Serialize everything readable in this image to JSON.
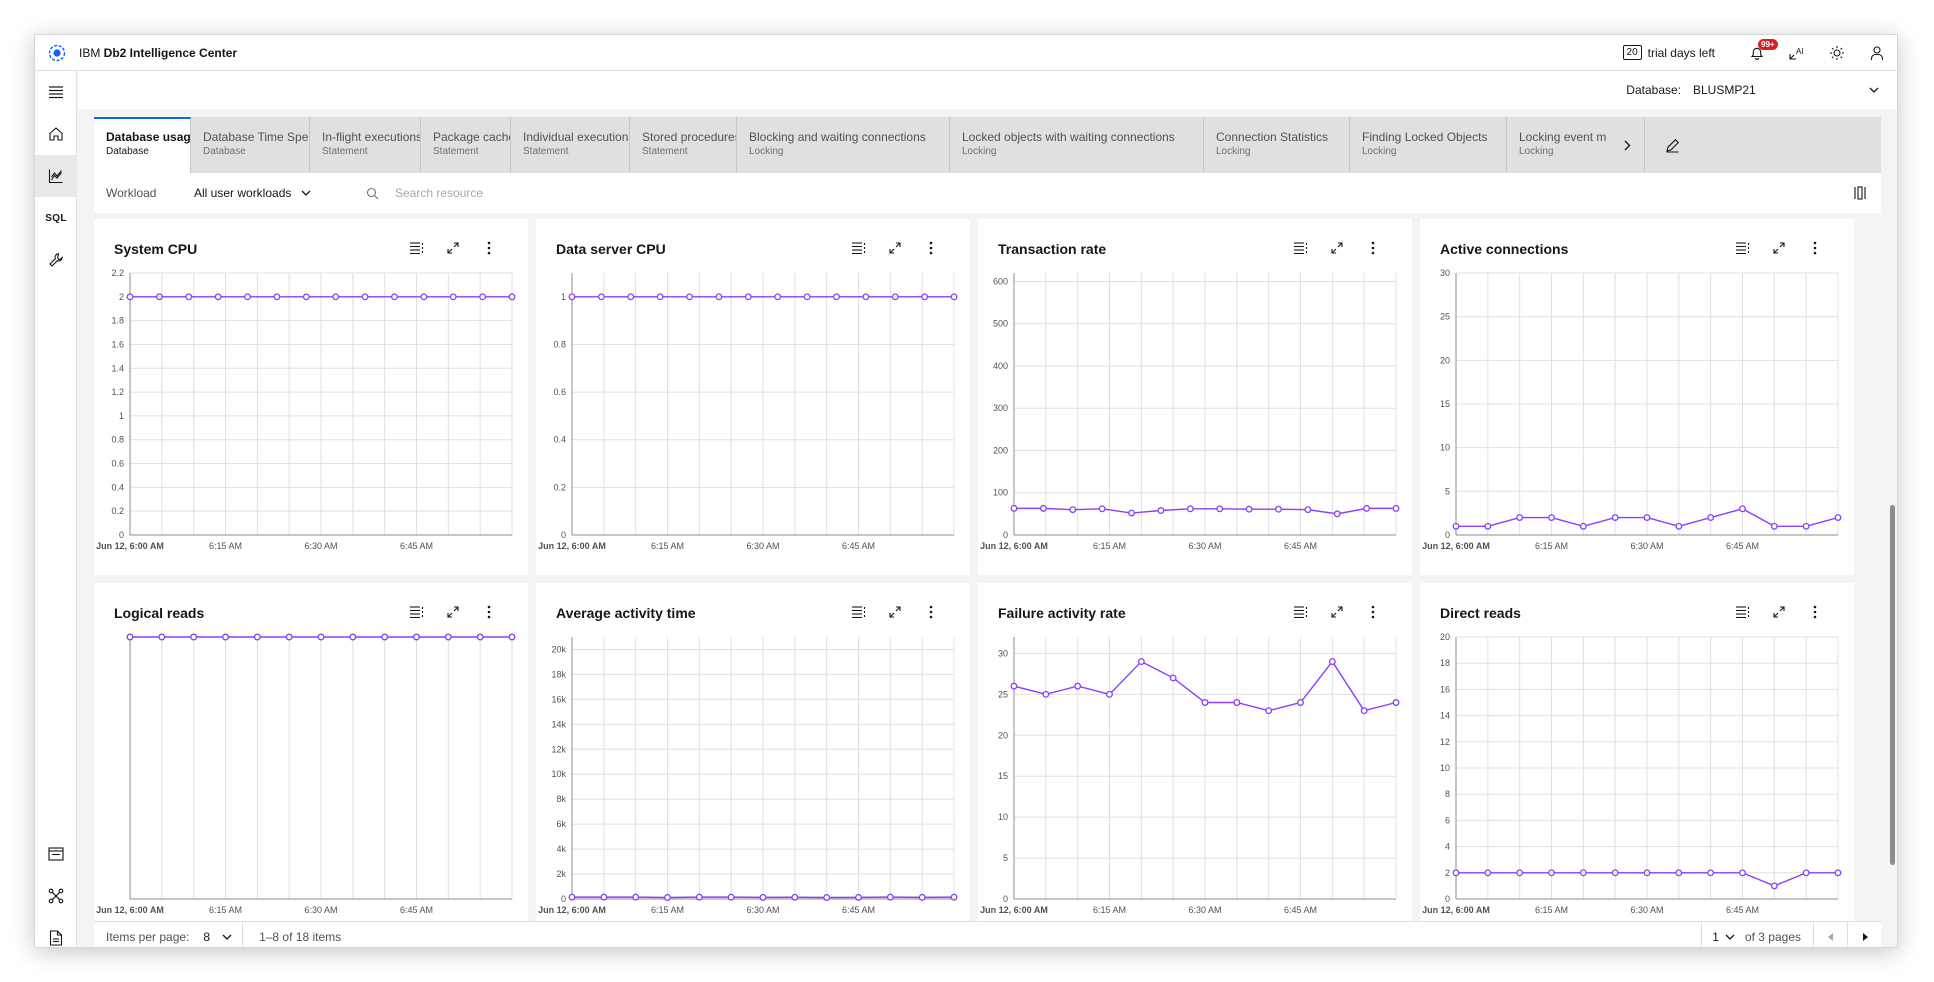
{
  "app": {
    "brand_prefix": "IBM ",
    "brand_name": "Db2 Intelligence Center",
    "trial_days": "20",
    "trial_text": "trial days left",
    "notification_count": "99+",
    "ai_label": "AI"
  },
  "sidenav": {
    "sql_label": "SQL"
  },
  "database": {
    "label": "Database:",
    "value": "BLUSMP21"
  },
  "tabs": [
    {
      "title": "Database usage",
      "subtitle": "Database"
    },
    {
      "title": "Database Time Spent",
      "subtitle": "Database"
    },
    {
      "title": "In-flight executions",
      "subtitle": "Statement"
    },
    {
      "title": "Package cache",
      "subtitle": "Statement"
    },
    {
      "title": "Individual executions",
      "subtitle": "Statement"
    },
    {
      "title": "Stored procedures",
      "subtitle": "Statement"
    },
    {
      "title": "Blocking and waiting connections",
      "subtitle": "Locking"
    },
    {
      "title": "Locked objects with waiting connections",
      "subtitle": "Locking"
    },
    {
      "title": "Connection Statistics",
      "subtitle": "Locking"
    },
    {
      "title": "Finding Locked Objects",
      "subtitle": "Locking"
    },
    {
      "title": "Locking event m",
      "subtitle": "Locking"
    }
  ],
  "filter": {
    "workload_label": "Workload",
    "workload_value": "All user workloads",
    "search_placeholder": "Search resource"
  },
  "pagination": {
    "items_per_page_label": "Items per page:",
    "items_per_page": "8",
    "range_text": "1–8 of 18 items",
    "current_page": "1",
    "of_pages": "of 3 pages"
  },
  "colors": {
    "series": "#8a3ffc",
    "accent": "#0f62fe",
    "grid": "#e0e0e0"
  },
  "chart_data": [
    {
      "type": "line",
      "title": "System CPU",
      "x_labels": [
        "Jun 12, 6:00 AM",
        "6:15 AM",
        "6:30 AM",
        "6:45 AM"
      ],
      "ylim": [
        0,
        2.2
      ],
      "y_ticks": [
        "0",
        "0.2",
        "0.4",
        "0.6",
        "0.8",
        "1",
        "1.2",
        "1.4",
        "1.6",
        "1.8",
        "2",
        "2.2"
      ],
      "values": [
        2,
        2,
        2,
        2,
        2,
        2,
        2,
        2,
        2,
        2,
        2,
        2,
        2,
        2
      ]
    },
    {
      "type": "line",
      "title": "Data server CPU",
      "x_labels": [
        "Jun 12, 6:00 AM",
        "6:15 AM",
        "6:30 AM",
        "6:45 AM"
      ],
      "ylim": [
        0,
        1.1
      ],
      "y_ticks": [
        "0",
        "0.2",
        "0.4",
        "0.6",
        "0.8",
        "1"
      ],
      "values": [
        1,
        1,
        1,
        1,
        1,
        1,
        1,
        1,
        1,
        1,
        1,
        1,
        1,
        1
      ]
    },
    {
      "type": "line",
      "title": "Transaction rate",
      "x_labels": [
        "Jun 12, 6:00 AM",
        "6:15 AM",
        "6:30 AM",
        "6:45 AM"
      ],
      "ylim": [
        0,
        620
      ],
      "y_ticks": [
        "0",
        "100",
        "200",
        "300",
        "400",
        "500",
        "600"
      ],
      "values": [
        63,
        63,
        60,
        62,
        52,
        58,
        62,
        62,
        61,
        61,
        60,
        50,
        63,
        63
      ]
    },
    {
      "type": "line",
      "title": "Active connections",
      "x_labels": [
        "Jun 12, 6:00 AM",
        "6:15 AM",
        "6:30 AM",
        "6:45 AM"
      ],
      "ylim": [
        0,
        30
      ],
      "y_ticks": [
        "0",
        "5",
        "10",
        "15",
        "20",
        "25",
        "30"
      ],
      "values": [
        1,
        1,
        2,
        2,
        1,
        2,
        2,
        1,
        2,
        3,
        1,
        1,
        2
      ]
    },
    {
      "type": "line",
      "title": "Logical reads",
      "x_labels": [
        "Jun 12, 6:00 AM",
        "6:15 AM",
        "6:30 AM",
        "6:45 AM"
      ],
      "ylim": [
        0,
        1
      ],
      "y_ticks": [],
      "values": [
        1,
        1,
        1,
        1,
        1,
        1,
        1,
        1,
        1,
        1,
        1,
        1,
        1
      ]
    },
    {
      "type": "line",
      "title": "Average activity time",
      "x_labels": [
        "Jun 12, 6:00 AM",
        "6:15 AM",
        "6:30 AM",
        "6:45 AM"
      ],
      "ylim": [
        0,
        21000
      ],
      "y_ticks": [
        "0",
        "2k",
        "4k",
        "6k",
        "8k",
        "10k",
        "12k",
        "14k",
        "16k",
        "18k",
        "20k"
      ],
      "values": [
        150,
        150,
        150,
        120,
        150,
        150,
        130,
        140,
        120,
        130,
        150,
        130,
        150
      ]
    },
    {
      "type": "line",
      "title": "Failure activity rate",
      "x_labels": [
        "Jun 12, 6:00 AM",
        "6:15 AM",
        "6:30 AM",
        "6:45 AM"
      ],
      "ylim": [
        0,
        32
      ],
      "y_ticks": [
        "0",
        "5",
        "10",
        "15",
        "20",
        "25",
        "30"
      ],
      "values": [
        26,
        25,
        26,
        25,
        29,
        27,
        24,
        24,
        23,
        24,
        29,
        23,
        24
      ]
    },
    {
      "type": "line",
      "title": "Direct reads",
      "x_labels": [
        "Jun 12, 6:00 AM",
        "6:15 AM",
        "6:30 AM",
        "6:45 AM"
      ],
      "ylim": [
        0,
        20
      ],
      "y_ticks": [
        "0",
        "2",
        "4",
        "6",
        "8",
        "10",
        "12",
        "14",
        "16",
        "18",
        "20"
      ],
      "values": [
        2,
        2,
        2,
        2,
        2,
        2,
        2,
        2,
        2,
        2,
        1,
        2,
        2
      ]
    }
  ]
}
